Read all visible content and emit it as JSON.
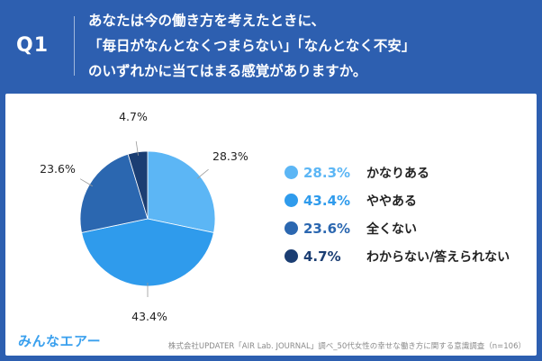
{
  "question": {
    "label": "Q1",
    "lines": [
      "あなたは今の働き方を考えたときに、",
      "「毎日がなんとなくつまらない」「なんとなく不安」",
      "のいずれかに当てはまる感覚がありますか。"
    ]
  },
  "chart_data": {
    "type": "pie",
    "title": "",
    "slices": [
      {
        "label": "かなりある",
        "value": 28.3,
        "display": "28.3%",
        "color": "#5cb6f5"
      },
      {
        "label": "ややある",
        "value": 43.4,
        "display": "43.4%",
        "color": "#2f9bec"
      },
      {
        "label": "全くない",
        "value": 23.6,
        "display": "23.6%",
        "color": "#2b67b0"
      },
      {
        "label": "わからない/答えられない",
        "value": 4.7,
        "display": "4.7%",
        "color": "#1b3e73"
      }
    ],
    "legend_position": "right"
  },
  "footer": {
    "logo": "みんなエアー",
    "source": "株式会社UPDATER「AIR Lab. JOURNAL」調べ_50代女性の幸せな働き方に関する意識調査（n=106）"
  }
}
